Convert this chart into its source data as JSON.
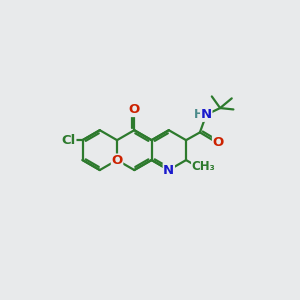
{
  "bg_color": "#e8eaeb",
  "bond_color": "#2d7a2d",
  "bond_width": 1.6,
  "atom_colors": {
    "O": "#cc2200",
    "N": "#1a1acc",
    "Cl": "#2d7a2d",
    "H": "#4a8a8a"
  },
  "figsize": [
    3.0,
    3.0
  ],
  "dpi": 100,
  "bl": 0.72
}
